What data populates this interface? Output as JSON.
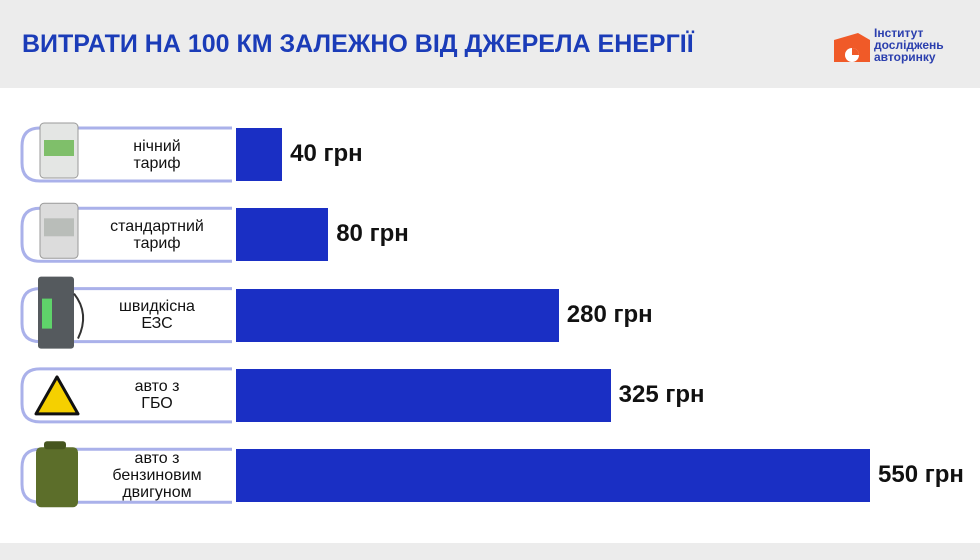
{
  "chart_data": {
    "type": "bar",
    "orientation": "horizontal",
    "title": "ВИТРАТИ НА 100 КМ ЗАЛЕЖНО ВІД ДЖЕРЕЛА ЕНЕРГІЇ",
    "categories": [
      "нічний\nтариф",
      "стандартний\nтариф",
      "швидкісна\nЕЗС",
      "авто з\nГБО",
      "авто з\nбензиновим\nдвигуном"
    ],
    "values": [
      40,
      80,
      280,
      325,
      550
    ],
    "value_labels": [
      "40 грн",
      "80 грн",
      "280 грн",
      "325 грн",
      "550 грн"
    ],
    "color": "#1a2fc4",
    "xlim": [
      0,
      550
    ]
  },
  "logo": "Інститут\nдосліджень\nавторинку"
}
